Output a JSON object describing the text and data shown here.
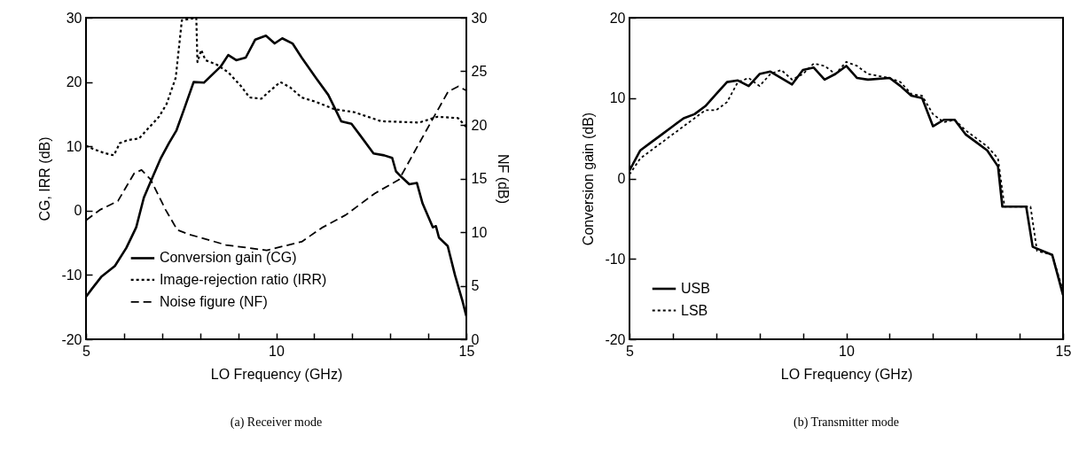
{
  "chart_data": [
    {
      "type": "line",
      "xlabel": "LO Frequency (GHz)",
      "ylabel": "CG, IRR (dB)",
      "y2label": "NF (dB)",
      "xlim": [
        5,
        15
      ],
      "xticks": [
        5,
        {
          "value": 6,
          "label": null
        },
        {
          "value": 7,
          "label": null
        },
        {
          "value": 8,
          "label": null
        },
        {
          "value": 9,
          "label": null
        },
        10,
        {
          "value": 11,
          "label": null
        },
        {
          "value": 12,
          "label": null
        },
        {
          "value": 13,
          "label": null
        },
        {
          "value": 14,
          "label": null
        },
        15
      ],
      "ylim": [
        -20,
        30
      ],
      "yticks": [
        -20,
        -10,
        0,
        10,
        20,
        30
      ],
      "y2lim": [
        0,
        30
      ],
      "y2ticks": [
        0,
        5,
        10,
        15,
        20,
        25,
        30
      ],
      "grid": false,
      "legend": "bottom",
      "annotations": [
        "(a) Receiver mode"
      ],
      "series": [
        {
          "name": "Conversion gain (CG)",
          "color": "#000000",
          "line_style": "solid",
          "x": [
            5,
            5.15,
            5.4,
            5.76,
            6.06,
            6.32,
            6.52,
            6.72,
            6.97,
            7.18,
            7.38,
            7.58,
            7.83,
            8.1,
            8.54,
            8.74,
            8.95,
            9.2,
            9.45,
            9.73,
            9.96,
            10.16,
            10.43,
            10.67,
            11.05,
            11.37,
            11.71,
            11.98,
            12.21,
            12.56,
            12.84,
            13.05,
            13.15,
            13.3,
            13.5,
            13.7,
            13.85,
            14.12,
            14.2,
            14.28,
            14.51,
            14.7,
            14.9,
            15
          ],
          "values": [
            -13.4,
            -12.2,
            -10.3,
            -8.6,
            -5.8,
            -2.6,
            2,
            4.8,
            8.2,
            10.5,
            12.5,
            15.8,
            20,
            19.9,
            22.4,
            24.2,
            23.4,
            23.8,
            26.6,
            27.2,
            26,
            26.8,
            26,
            23.8,
            20.6,
            18,
            13.9,
            13.5,
            11.7,
            8.9,
            8.6,
            8.2,
            6.1,
            5.2,
            4.1,
            4.3,
            1.1,
            -2.6,
            -2.4,
            -4.2,
            -5.5,
            -10,
            -14.1,
            -16.4
          ]
        },
        {
          "name": "Image-rejection ratio (IRR)",
          "color": "#000000",
          "line_style": "dotted",
          "x": [
            5,
            5.1,
            5.46,
            5.73,
            5.89,
            6.11,
            6.39,
            6.7,
            6.92,
            7.12,
            7.36,
            7.52,
            7.9,
            7.93,
            8.03,
            8.14,
            8.44,
            8.74,
            9.07,
            9.3,
            9.61,
            9.81,
            10.11,
            10.36,
            10.67,
            11.05,
            11.52,
            12.06,
            12.76,
            13.76,
            14.24,
            14.78,
            15
          ],
          "values": [
            10.1,
            9.8,
            9,
            8.6,
            10.5,
            11,
            11.2,
            13.2,
            14.6,
            16.6,
            20.7,
            29.6,
            30,
            23.1,
            25,
            23.4,
            22.7,
            21.5,
            19.4,
            17.6,
            17.4,
            18.5,
            20,
            19.2,
            17.6,
            16.9,
            15.8,
            15.3,
            13.9,
            13.7,
            14.6,
            14.4,
            13
          ]
        },
        {
          "name": "Noise figure (NF)",
          "color": "#000000",
          "line_style": "dashed",
          "axis": "y2",
          "x": [
            5,
            5.38,
            5.84,
            6.27,
            6.46,
            6.7,
            7.09,
            7.4,
            7.7,
            8.68,
            9.75,
            10.67,
            11.2,
            11.83,
            12.59,
            13.23,
            13.7,
            14.17,
            14.52,
            14.79,
            15
          ],
          "values": [
            11.1,
            12.1,
            12.9,
            15.5,
            15.8,
            14.9,
            12.1,
            10.2,
            9.8,
            8.8,
            8.3,
            9.1,
            10.4,
            11.6,
            13.6,
            14.9,
            17.9,
            20.9,
            23.1,
            23.6,
            23.2
          ]
        }
      ]
    },
    {
      "type": "line",
      "xlabel": "LO Frequency (GHz)",
      "ylabel": "Conversion gain (dB)",
      "xlim": [
        5,
        15
      ],
      "xticks": [
        5,
        {
          "value": 6,
          "label": null
        },
        {
          "value": 7,
          "label": null
        },
        {
          "value": 8,
          "label": null
        },
        {
          "value": 9,
          "label": null
        },
        10,
        {
          "value": 11,
          "label": null
        },
        {
          "value": 12,
          "label": null
        },
        {
          "value": 13,
          "label": null
        },
        {
          "value": 14,
          "label": null
        },
        15
      ],
      "ylim": [
        -20,
        20
      ],
      "yticks": [
        -20,
        -10,
        0,
        10,
        20
      ],
      "grid": false,
      "legend": "bottom left",
      "annotations": [
        "(b) Transmitter mode"
      ],
      "series": [
        {
          "name": "USB",
          "color": "#000000",
          "line_style": "solid",
          "x": [
            5,
            5.25,
            5.5,
            5.75,
            6,
            6.25,
            6.5,
            6.75,
            7,
            7.25,
            7.5,
            7.75,
            8,
            8.25,
            8.5,
            8.75,
            9,
            9.25,
            9.5,
            9.75,
            10,
            10.25,
            10.5,
            11,
            11.25,
            11.5,
            11.75,
            12,
            12.25,
            12.5,
            12.75,
            13,
            13.25,
            13.5,
            13.6,
            14.15,
            14.3,
            14.75,
            15
          ],
          "values": [
            1,
            3.5,
            4.5,
            5.5,
            6.5,
            7.5,
            8,
            9,
            10.5,
            12,
            12.2,
            11.5,
            13,
            13.3,
            12.5,
            11.7,
            13.5,
            13.8,
            12.3,
            13,
            14,
            12.5,
            12.3,
            12.5,
            11.5,
            10.3,
            10,
            6.5,
            7.3,
            7.3,
            5.5,
            4.5,
            3.5,
            1.5,
            -3.5,
            -3.5,
            -8.5,
            -9.5,
            -14.5
          ]
        },
        {
          "name": "LSB",
          "color": "#000000",
          "line_style": "dotted",
          "x": [
            5,
            5.25,
            5.5,
            5.75,
            6,
            6.25,
            6.5,
            6.75,
            7,
            7.25,
            7.5,
            7.75,
            8,
            8.25,
            8.5,
            8.75,
            9,
            9.25,
            9.5,
            9.75,
            10,
            10.25,
            10.5,
            11,
            11.25,
            11.5,
            11.75,
            12,
            12.25,
            12.5,
            12.75,
            13,
            13.25,
            13.5,
            13.65,
            14.25,
            14.4,
            14.75,
            15
          ],
          "values": [
            0.5,
            2.5,
            3.5,
            4.5,
            5.5,
            6.5,
            7.5,
            8.5,
            8.5,
            9.5,
            12,
            12.5,
            11.5,
            13,
            13.5,
            12.3,
            13,
            14.3,
            14,
            13,
            14.5,
            14,
            13,
            12.5,
            12,
            10.5,
            10.3,
            8,
            7,
            7.3,
            6,
            5,
            4,
            2.5,
            -3.5,
            -3.5,
            -9,
            -9.5,
            -14
          ]
        }
      ]
    }
  ]
}
